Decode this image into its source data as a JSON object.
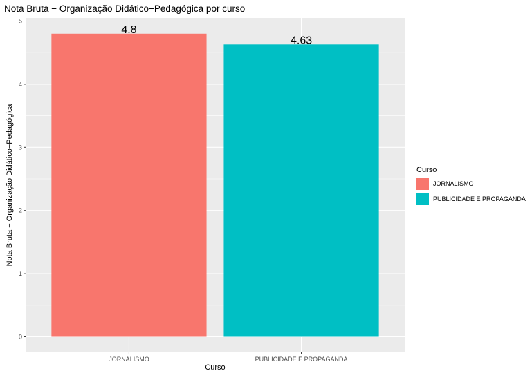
{
  "chart_data": {
    "type": "bar",
    "title": "Nota Bruta − Organização Didático−Pedagógica por curso",
    "xlabel": "Curso",
    "ylabel": "Nota Bruta − Organização Didático−Pedagógica",
    "categories": [
      "JORNALISMO",
      "PUBLICIDADE E PROPAGANDA"
    ],
    "values": [
      4.8,
      4.63
    ],
    "value_labels": [
      "4.8",
      "4.63"
    ],
    "colors": [
      "#F8766D",
      "#00BFC4"
    ],
    "ylim": [
      0,
      5
    ],
    "yticks": [
      0,
      1,
      2,
      3,
      4,
      5
    ],
    "ytick_labels": [
      "0",
      "1",
      "2",
      "3",
      "4",
      "5"
    ],
    "grid": true,
    "panel_background": "#EBEBEB",
    "legend": {
      "title": "Curso",
      "placement": "right",
      "entries": [
        "JORNALISMO",
        "PUBLICIDADE E PROPAGANDA"
      ]
    }
  }
}
